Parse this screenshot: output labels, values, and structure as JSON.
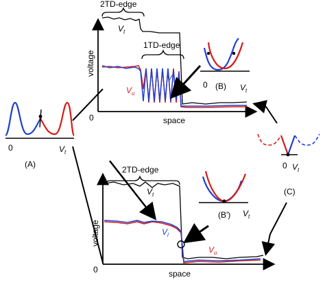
{
  "colors": {
    "blue": "#1f3fcf",
    "red": "#d91a1a",
    "black": "#000000",
    "gray": "#666666"
  },
  "inset_a": {
    "zero": "0",
    "vt": "V",
    "vt_sub": "t",
    "caption": "(A)"
  },
  "inset_b": {
    "zero": "0",
    "vt": "V",
    "vt_sub": "t",
    "caption": "(B)"
  },
  "inset_bp": {
    "vt": "V",
    "vt_sub": "t",
    "caption": "(B')"
  },
  "inset_c": {
    "zero": "0",
    "vt": "V",
    "vt_sub": "t",
    "caption": "(C)"
  },
  "top_plot": {
    "ylabel": "voltage",
    "xlabel": "space",
    "origin": "0",
    "brace_2td": "2TD-edge",
    "brace_1td": "1TD-edge",
    "vt": "V",
    "vt_sub": "t",
    "vl": "V",
    "vl_sub": "l",
    "vu": "V",
    "vu_sub": "u"
  },
  "bottom_plot": {
    "ylabel": "voltage",
    "xlabel": "space",
    "origin": "0",
    "brace_2td": "2TD-edge",
    "vt": "V",
    "vt_sub": "t",
    "vl": "V",
    "vl_sub": "l",
    "vu": "V",
    "vu_sub": "u"
  }
}
